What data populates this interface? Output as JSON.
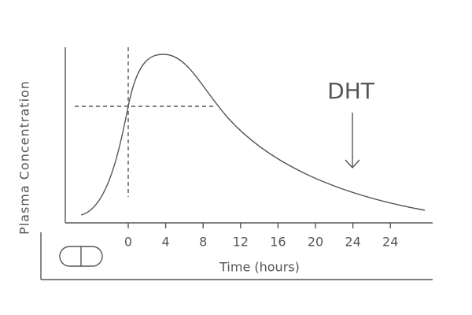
{
  "axes": {
    "y_label": "Plasma Concentration",
    "x_label": "Time (hours)",
    "x_ticks": [
      "0",
      "4",
      "8",
      "12",
      "16",
      "20",
      "24",
      "24"
    ]
  },
  "annotation": {
    "label": "DHT"
  }
}
